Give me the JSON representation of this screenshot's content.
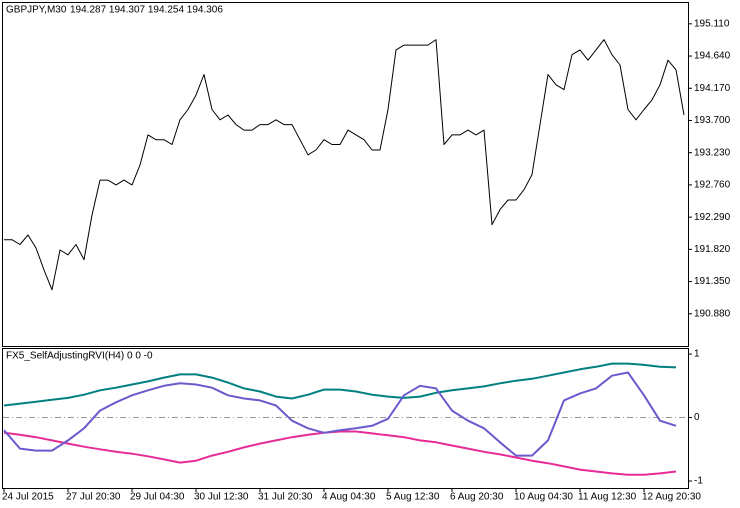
{
  "chart_data": [
    {
      "type": "line",
      "title": "GBPJPY,M30",
      "subtitle": "194.287 194.307 194.254 194.306",
      "color": "#000000",
      "values": [
        191.96,
        191.96,
        191.89,
        192.03,
        191.84,
        191.52,
        191.23,
        191.81,
        191.74,
        191.89,
        191.67,
        192.32,
        192.83,
        192.83,
        192.76,
        192.83,
        192.76,
        193.05,
        193.49,
        193.42,
        193.42,
        193.35,
        193.71,
        193.86,
        194.07,
        194.37,
        193.86,
        193.71,
        193.78,
        193.64,
        193.56,
        193.56,
        193.64,
        193.64,
        193.71,
        193.64,
        193.64,
        193.42,
        193.2,
        193.27,
        193.42,
        193.35,
        193.35,
        193.56,
        193.49,
        193.42,
        193.27,
        193.27,
        193.86,
        194.73,
        194.8,
        194.8,
        194.8,
        194.8,
        194.88,
        193.35,
        193.49,
        193.49,
        193.56,
        193.49,
        193.56,
        192.18,
        192.4,
        192.54,
        192.54,
        192.69,
        192.91,
        193.64,
        194.37,
        194.22,
        194.15,
        194.66,
        194.73,
        194.58,
        194.73,
        194.88,
        194.66,
        194.51,
        193.86,
        193.71,
        193.86,
        194.0,
        194.22,
        194.58,
        194.44,
        193.78
      ],
      "ylim": [
        190.41,
        195.37
      ],
      "yticks": [
        {
          "value": 195.11,
          "label": "195.110"
        },
        {
          "value": 194.64,
          "label": "194.640"
        },
        {
          "value": 194.17,
          "label": "194.170"
        },
        {
          "value": 193.7,
          "label": "193.700"
        },
        {
          "value": 193.23,
          "label": "193.230"
        },
        {
          "value": 192.76,
          "label": "192.760"
        },
        {
          "value": 192.29,
          "label": "192.290"
        },
        {
          "value": 191.82,
          "label": "191.820"
        },
        {
          "value": 191.35,
          "label": "191.350"
        },
        {
          "value": 190.88,
          "label": "190.880"
        }
      ]
    },
    {
      "type": "line",
      "title": "FX5_SelfAdjustingRVI(H4) 0 0 -0",
      "categories": [
        "24 Jul 2015",
        null,
        null,
        null,
        "27 Jul 20:30",
        null,
        null,
        null,
        "29 Jul 04:30",
        null,
        null,
        null,
        "30 Jul 12:30",
        null,
        null,
        null,
        "31 Jul 20:30",
        null,
        null,
        null,
        "4 Aug 04:30",
        null,
        null,
        null,
        "5 Aug 12:30",
        null,
        null,
        null,
        "6 Aug 20:30",
        null,
        null,
        null,
        "10 Aug 04:30",
        null,
        null,
        null,
        "11 Aug 12:30",
        null,
        null,
        null,
        "12 Aug 20:30",
        null,
        null
      ],
      "series": [
        {
          "color": "#008080",
          "values": [
            0.19,
            0.22,
            0.25,
            0.28,
            0.31,
            0.36,
            0.43,
            0.47,
            0.52,
            0.57,
            0.63,
            0.68,
            0.68,
            0.63,
            0.55,
            0.46,
            0.41,
            0.33,
            0.3,
            0.36,
            0.44,
            0.44,
            0.41,
            0.36,
            0.33,
            0.31,
            0.33,
            0.39,
            0.43,
            0.46,
            0.49,
            0.54,
            0.58,
            0.61,
            0.66,
            0.71,
            0.76,
            0.8,
            0.85,
            0.85,
            0.83,
            0.8,
            0.79
          ]
        },
        {
          "color": "#e62c96",
          "values": [
            -0.24,
            -0.27,
            -0.31,
            -0.36,
            -0.41,
            -0.46,
            -0.5,
            -0.54,
            -0.57,
            -0.61,
            -0.66,
            -0.71,
            -0.68,
            -0.6,
            -0.54,
            -0.47,
            -0.41,
            -0.36,
            -0.31,
            -0.27,
            -0.24,
            -0.22,
            -0.22,
            -0.25,
            -0.28,
            -0.31,
            -0.36,
            -0.39,
            -0.44,
            -0.49,
            -0.54,
            -0.58,
            -0.63,
            -0.68,
            -0.72,
            -0.77,
            -0.82,
            -0.85,
            -0.88,
            -0.9,
            -0.9,
            -0.88,
            -0.85
          ]
        },
        {
          "color": "#6a5acd",
          "values": [
            -0.2,
            -0.49,
            -0.52,
            -0.52,
            -0.36,
            -0.17,
            0.11,
            0.24,
            0.35,
            0.43,
            0.5,
            0.54,
            0.52,
            0.47,
            0.35,
            0.3,
            0.27,
            0.19,
            -0.05,
            -0.17,
            -0.24,
            -0.2,
            -0.17,
            -0.13,
            -0.02,
            0.35,
            0.5,
            0.46,
            0.11,
            -0.05,
            -0.17,
            -0.39,
            -0.6,
            -0.6,
            -0.36,
            0.27,
            0.38,
            0.46,
            0.66,
            0.71,
            0.35,
            -0.05,
            -0.13
          ]
        }
      ],
      "levels": [
        0
      ],
      "ylim": [
        -1.11,
        1.08
      ],
      "yticks": [
        1,
        0,
        -1
      ]
    }
  ]
}
